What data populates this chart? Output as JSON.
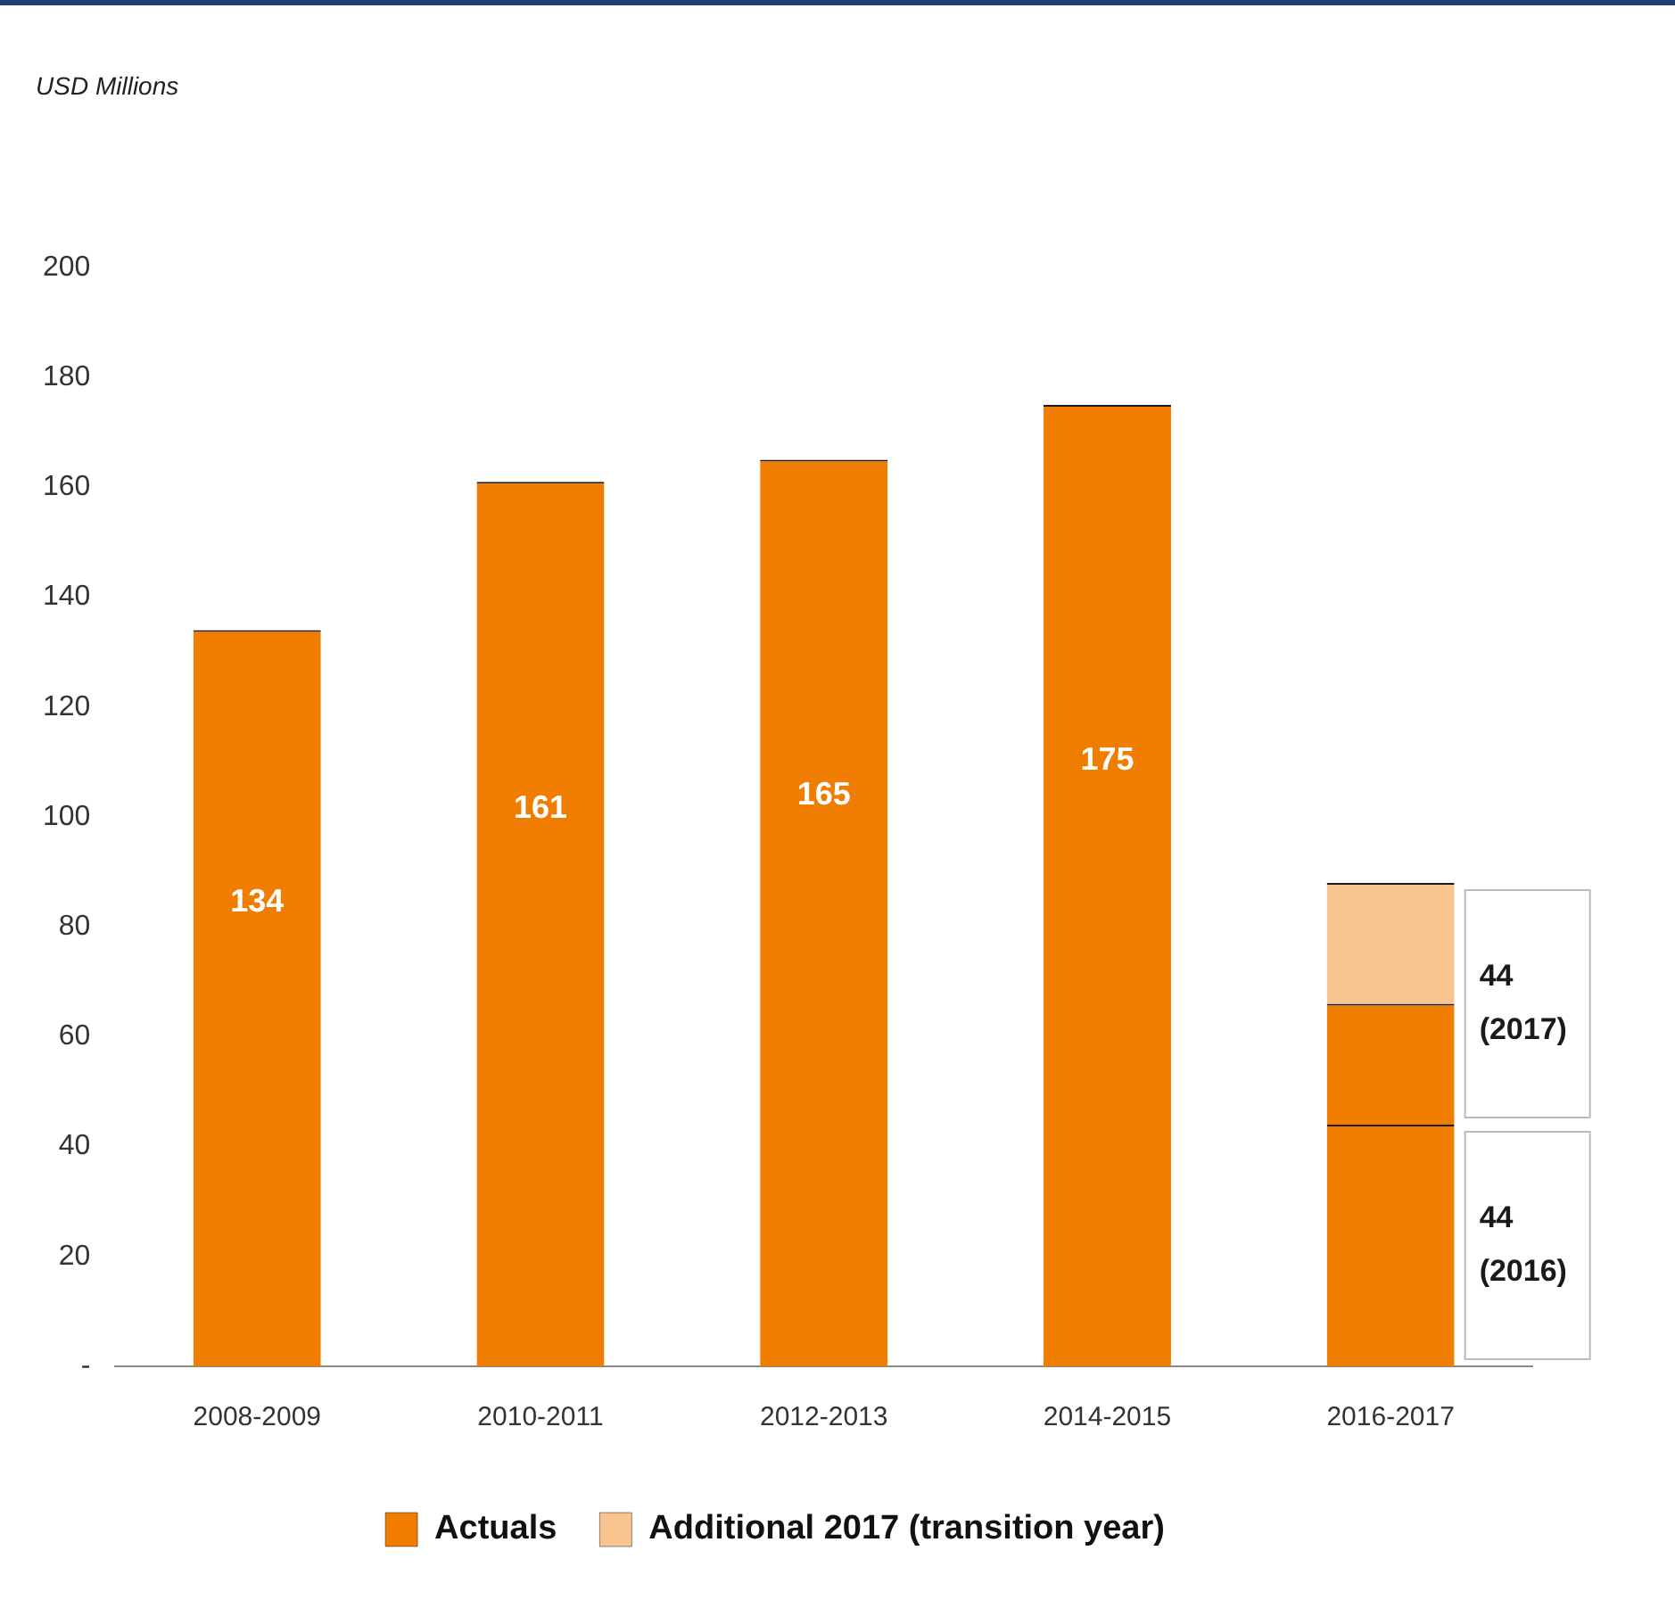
{
  "chart_data": {
    "type": "bar",
    "stacked": true,
    "categories": [
      "2008-2009",
      "2010-2011",
      "2012-2013",
      "2014-2015",
      "2016-2017"
    ],
    "series": [
      {
        "name": "Actuals",
        "color": "#f07d00",
        "values": [
          134,
          161,
          165,
          175,
          44
        ],
        "value_labels": [
          "134",
          "161",
          "165",
          "175",
          null
        ]
      },
      {
        "color": "#f07d00",
        "values": [
          null,
          null,
          null,
          null,
          22
        ]
      },
      {
        "name": "Additional 2017 (transition year)",
        "color": "#f9c48f",
        "values": [
          null,
          null,
          null,
          null,
          22
        ]
      }
    ],
    "ylim": [
      0,
      200
    ],
    "yticks": [
      {
        "value": 0,
        "label": "-"
      },
      20,
      40,
      60,
      80,
      100,
      120,
      140,
      160,
      180,
      200
    ],
    "grid": false,
    "legend": "bottom",
    "annotations": [
      "USD Millions",
      "44 (2017)",
      "44 (2016)"
    ]
  }
}
